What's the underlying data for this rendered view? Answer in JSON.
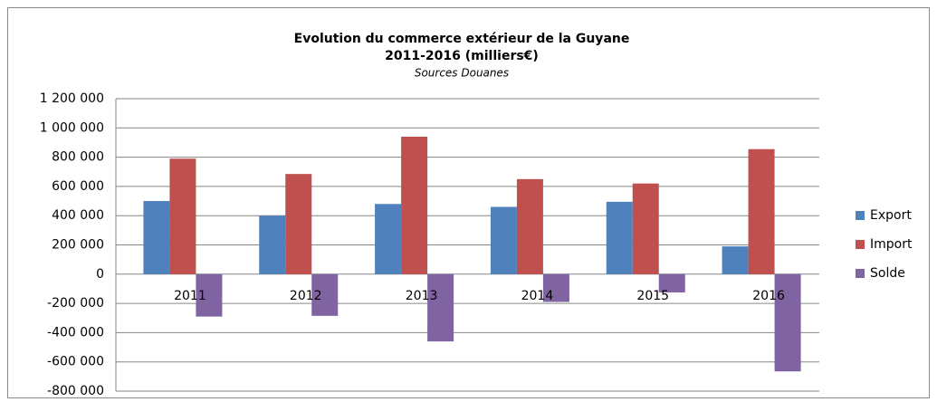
{
  "chart_data": {
    "type": "bar",
    "title": "Evolution du commerce extérieur de la Guyane",
    "title_line2": "2011-2016 (milliers€)",
    "subtitle": "Sources Douanes",
    "categories": [
      "2011",
      "2012",
      "2013",
      "2014",
      "2015",
      "2016"
    ],
    "series": [
      {
        "name": "Export",
        "color": "#4f81bd",
        "values": [
          500000,
          400000,
          480000,
          460000,
          495000,
          190000
        ]
      },
      {
        "name": "Import",
        "color": "#c0504d",
        "values": [
          790000,
          685000,
          940000,
          650000,
          620000,
          855000
        ]
      },
      {
        "name": "Solde",
        "color": "#8064a2",
        "values": [
          -290000,
          -285000,
          -460000,
          -190000,
          -125000,
          -665000
        ]
      }
    ],
    "ylim": [
      -800000,
      1200000
    ],
    "yticks": [
      {
        "value": -800000,
        "label": "-800 000"
      },
      {
        "value": -600000,
        "label": "-600 000"
      },
      {
        "value": -400000,
        "label": "-400 000"
      },
      {
        "value": -200000,
        "label": "-200 000"
      },
      0,
      {
        "value": 200000,
        "label": "200 000"
      },
      {
        "value": 400000,
        "label": "400 000"
      },
      {
        "value": 600000,
        "label": "600 000"
      },
      {
        "value": 800000,
        "label": "800 000"
      },
      {
        "value": 1000000,
        "label": "1 000 000"
      },
      {
        "value": 1200000,
        "label": "1 200 000"
      }
    ],
    "grid": true,
    "legend": "right"
  }
}
